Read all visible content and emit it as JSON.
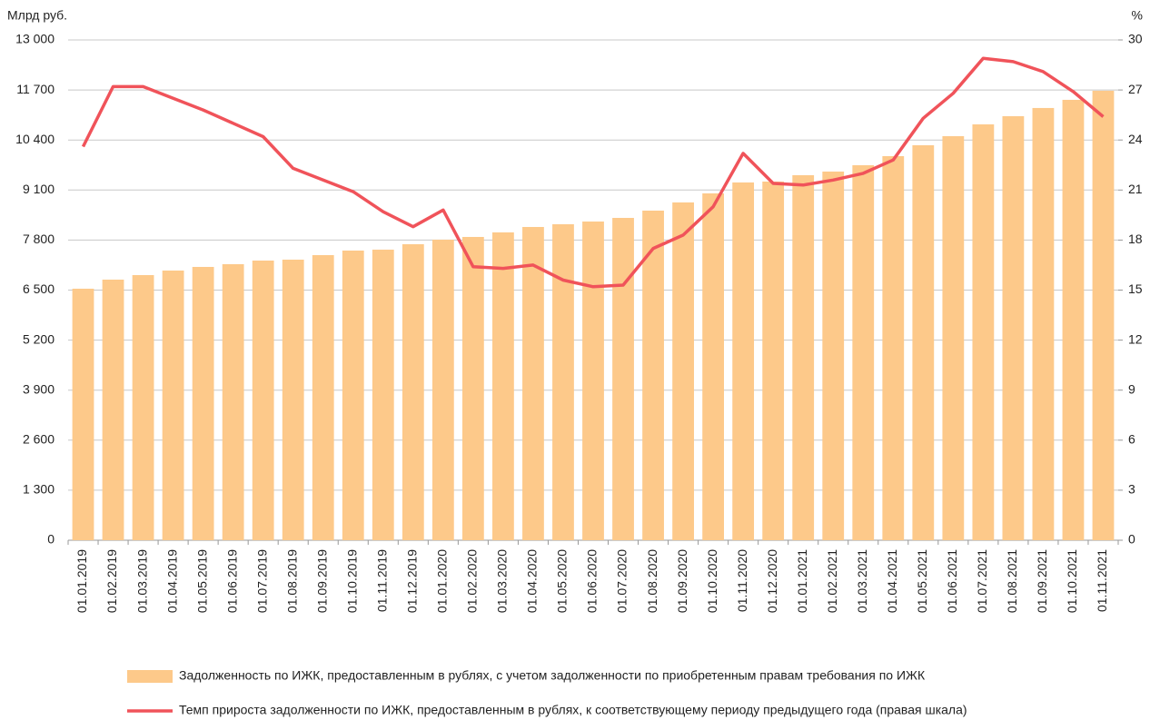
{
  "chart_data": {
    "type": "combo",
    "y_axis_label": "Млрд руб.",
    "y2_axis_label": "%",
    "categories": [
      "01.01.2019",
      "01.02.2019",
      "01.03.2019",
      "01.04.2019",
      "01.05.2019",
      "01.06.2019",
      "01.07.2019",
      "01.08.2019",
      "01.09.2019",
      "01.10.2019",
      "01.11.2019",
      "01.12.2019",
      "01.01.2020",
      "01.02.2020",
      "01.03.2020",
      "01.04.2020",
      "01.05.2020",
      "01.06.2020",
      "01.07.2020",
      "01.08.2020",
      "01.09.2020",
      "01.10.2020",
      "01.11.2020",
      "01.12.2020",
      "01.01.2021",
      "01.02.2021",
      "01.03.2021",
      "01.04.2021",
      "01.05.2021",
      "01.06.2021",
      "01.07.2021",
      "01.08.2021",
      "01.09.2021",
      "01.10.2021",
      "01.11.2021"
    ],
    "series": [
      {
        "name": "Задолженность по ИЖК, предоставленным в рублях, с учетом задолженности по приобретенным правам требования по ИЖК",
        "type": "bar",
        "color": "#fdc98a",
        "values": [
          6536,
          6772,
          6890,
          7008,
          7102,
          7173,
          7267,
          7291,
          7409,
          7527,
          7551,
          7692,
          7810,
          7881,
          8000,
          8140,
          8211,
          8282,
          8376,
          8565,
          8778,
          9013,
          9297,
          9320,
          9486,
          9580,
          9745,
          9981,
          10264,
          10500,
          10807,
          11019,
          11232,
          11444,
          11680
        ]
      },
      {
        "name": "Темп прироста задолженности по ИЖК, предоставленным в рублях, к соответствующему периоду предыдущего года (правая шкала)",
        "type": "line",
        "axis": "y2",
        "color": "#f0535a",
        "values": [
          23.6,
          27.2,
          27.2,
          26.5,
          25.8,
          25.0,
          24.2,
          22.3,
          21.6,
          20.9,
          19.7,
          18.8,
          19.8,
          16.4,
          16.3,
          16.5,
          15.6,
          15.2,
          15.3,
          17.5,
          18.3,
          20.0,
          23.2,
          21.4,
          21.3,
          21.6,
          22.0,
          22.8,
          25.3,
          26.8,
          28.9,
          28.7,
          28.1,
          26.9,
          25.4
        ]
      }
    ],
    "ylim": [
      0,
      13000
    ],
    "yticks": [
      0,
      {
        "value": 1300,
        "label": "1 300"
      },
      {
        "value": 2600,
        "label": "2 600"
      },
      {
        "value": 3900,
        "label": "3 900"
      },
      {
        "value": 5200,
        "label": "5 200"
      },
      {
        "value": 6500,
        "label": "6 500"
      },
      {
        "value": 7800,
        "label": "7 800"
      },
      {
        "value": 9100,
        "label": "9 100"
      },
      {
        "value": 10400,
        "label": "10 400"
      },
      {
        "value": 11700,
        "label": "11 700"
      },
      {
        "value": 13000,
        "label": "13 000"
      }
    ],
    "y2lim": [
      0,
      30
    ],
    "y2ticks": [
      0,
      3,
      6,
      9,
      12,
      15,
      18,
      21,
      24,
      27,
      30
    ],
    "grid": true
  }
}
